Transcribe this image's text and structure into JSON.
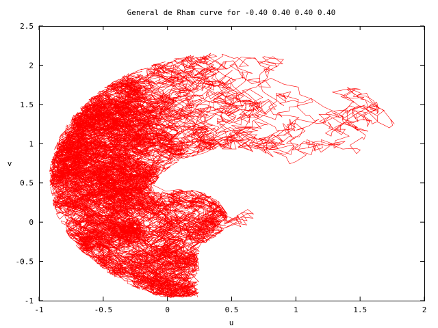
{
  "chart_data": {
    "type": "line",
    "title": "General de Rham curve for -0.40 0.40 0.40 0.40",
    "xlabel": "u",
    "ylabel": "v",
    "xlim": [
      -1,
      2
    ],
    "ylim": [
      -1,
      2.5
    ],
    "x_ticks": [
      -1,
      -0.5,
      0,
      0.5,
      1,
      1.5,
      2
    ],
    "x_tick_labels": [
      "-1",
      "-0.5",
      "0",
      "0.5",
      "1",
      "1.5",
      "2"
    ],
    "y_ticks": [
      -1,
      -0.5,
      0,
      0.5,
      1,
      1.5,
      2,
      2.5
    ],
    "y_tick_labels": [
      "-1",
      "-0.5",
      "0",
      "0.5",
      "1",
      "1.5",
      "2",
      "2.5"
    ],
    "grid": false,
    "legend": "none",
    "series": [
      {
        "color": "#ff0000",
        "parameters": [
          -0.4,
          0.4,
          0.4,
          0.4
        ],
        "extent": {
          "u": [
            -0.9,
            1.9
          ],
          "v": [
            -0.96,
            2.18
          ]
        },
        "shape": "horseshoe-shaped cloud of red line segments, open at the bottom, with two inward spirals near (0.1, 0.1) and (0.9, 0.1)"
      }
    ]
  }
}
